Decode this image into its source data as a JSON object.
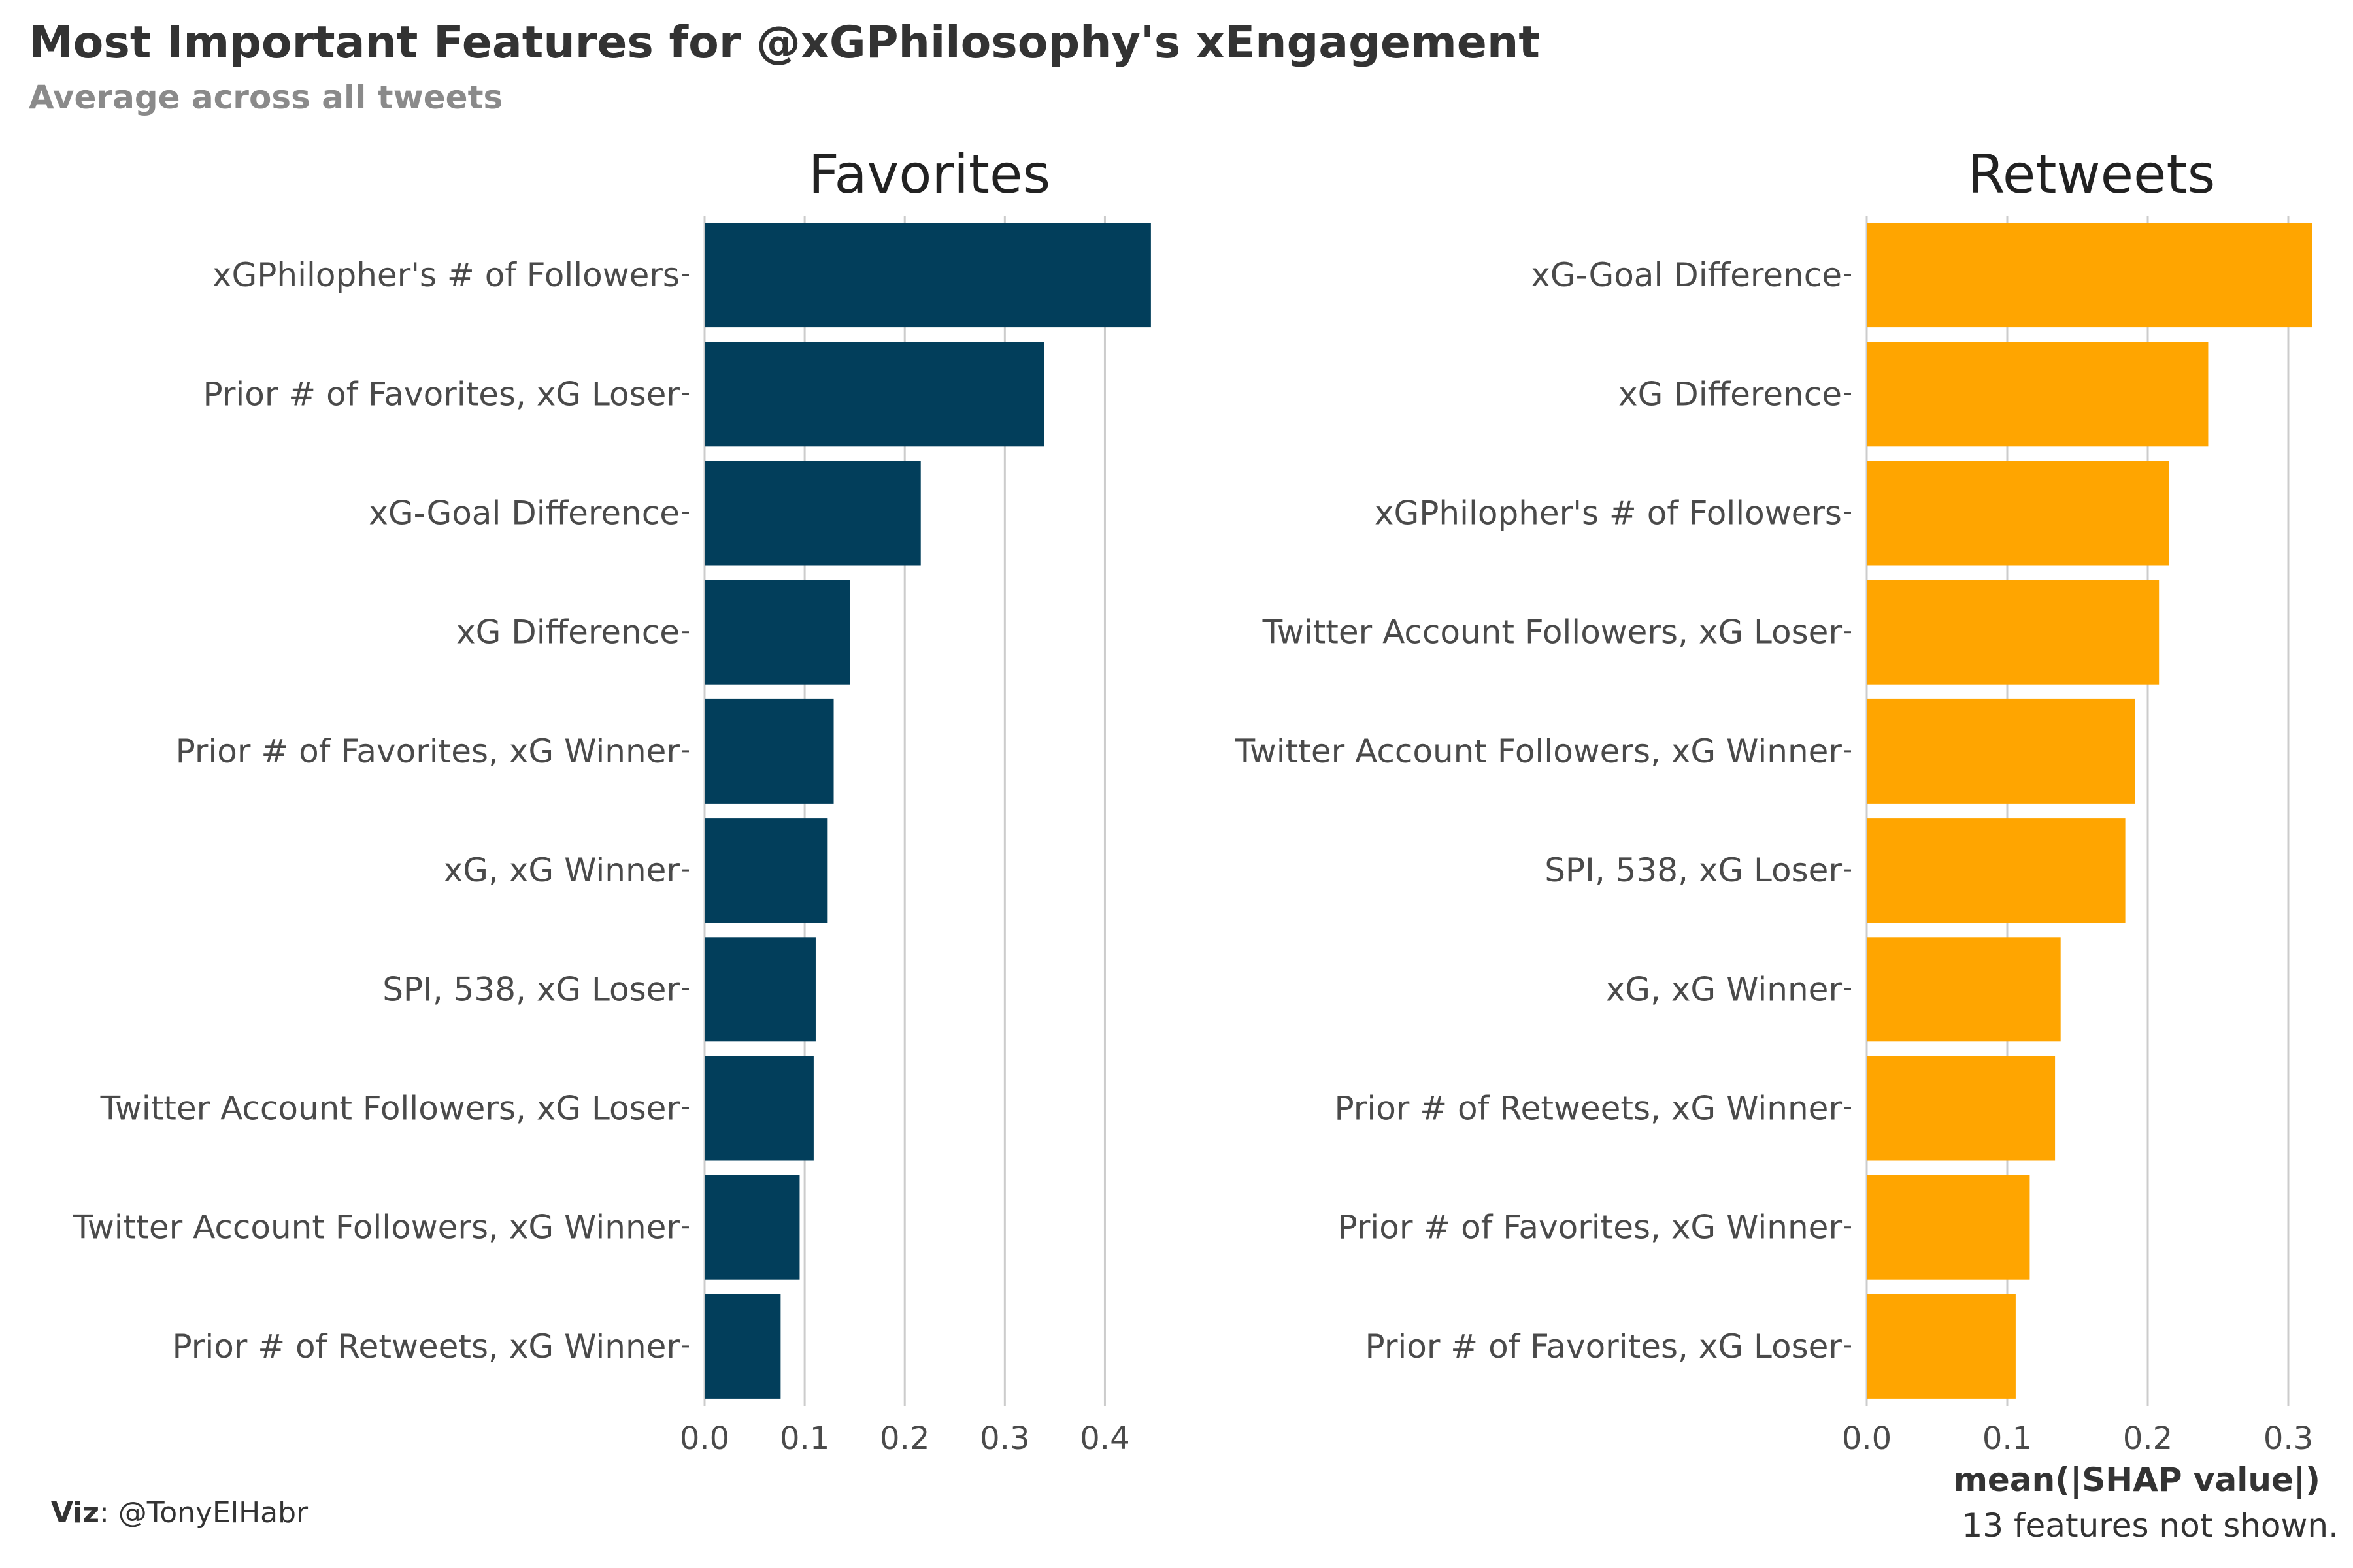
{
  "title": "Most Important Features for @xGPhilosophy's xEngagement",
  "subtitle": "Average across all tweets",
  "credit": {
    "label": "Viz",
    "handle": ": @TonyElHabr"
  },
  "xlabel": "mean(|SHAP value|)",
  "caption": "13 features not shown.",
  "colors": {
    "favorites": "#023E5B",
    "retweets": "#FFA500",
    "grid": "#cccccc"
  },
  "chart_data": [
    {
      "type": "bar",
      "orientation": "horizontal",
      "facet": "Favorites",
      "xlim": [
        0,
        0.45
      ],
      "xticks": [
        "0.0",
        "0.1",
        "0.2",
        "0.3",
        "0.4"
      ],
      "xtick_values": [
        0,
        0.1,
        0.2,
        0.3,
        0.4
      ],
      "categories": [
        "xGPhilopher's # of Followers",
        "Prior # of Favorites, xG Loser",
        "xG-Goal Difference",
        "xG Difference",
        "Prior # of Favorites, xG Winner",
        "xG, xG Winner",
        "SPI, 538, xG Loser",
        "Twitter Account Followers, xG Loser",
        "Twitter Account Followers, xG Winner",
        "Prior # of Retweets, xG Winner"
      ],
      "values": [
        0.446,
        0.339,
        0.216,
        0.145,
        0.129,
        0.123,
        0.111,
        0.109,
        0.095,
        0.076
      ]
    },
    {
      "type": "bar",
      "orientation": "horizontal",
      "facet": "Retweets",
      "xlim": [
        0,
        0.32
      ],
      "xticks": [
        "0.0",
        "0.1",
        "0.2",
        "0.3"
      ],
      "xtick_values": [
        0,
        0.1,
        0.2,
        0.3
      ],
      "categories": [
        "xG-Goal Difference",
        "xG Difference",
        "xGPhilopher's # of Followers",
        "Twitter Account Followers, xG Loser",
        "Twitter Account Followers, xG Winner",
        "SPI, 538, xG Loser",
        "xG, xG Winner",
        "Prior # of Retweets, xG Winner",
        "Prior # of Favorites, xG Winner",
        "Prior # of Favorites, xG Loser"
      ],
      "values": [
        0.317,
        0.243,
        0.215,
        0.208,
        0.191,
        0.184,
        0.138,
        0.134,
        0.116,
        0.106
      ]
    }
  ]
}
